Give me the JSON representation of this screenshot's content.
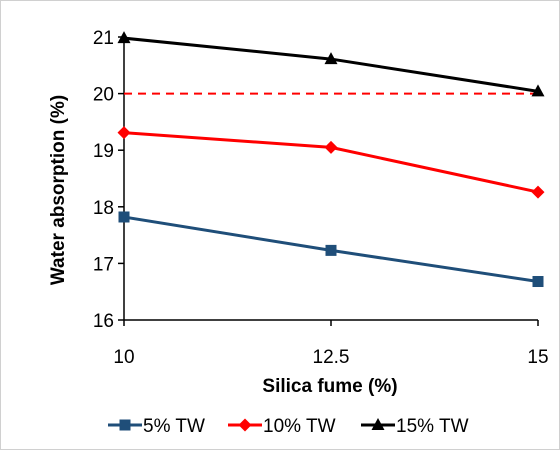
{
  "chart_data": {
    "type": "line",
    "xlabel": "Silica fume (%)",
    "ylabel": "Water absorption (%)",
    "x": [
      10,
      12.5,
      15
    ],
    "x_tick_labels": [
      "10",
      "12.5",
      "15"
    ],
    "ylim": [
      16,
      21
    ],
    "y_ticks": [
      16,
      17,
      18,
      19,
      20,
      21
    ],
    "grid": false,
    "legend_position": "bottom",
    "series": [
      {
        "name": "5% TW",
        "values": [
          17.82,
          17.23,
          16.68
        ],
        "color": "#1f4e79",
        "marker": "square"
      },
      {
        "name": "10% TW",
        "values": [
          19.31,
          19.05,
          18.26
        ],
        "color": "#ff0000",
        "marker": "diamond"
      },
      {
        "name": "15% TW",
        "values": [
          20.98,
          20.61,
          20.04
        ],
        "color": "#000000",
        "marker": "triangle"
      }
    ],
    "reference_line": {
      "y": 20,
      "color": "#ff0000",
      "style": "dashed"
    }
  }
}
